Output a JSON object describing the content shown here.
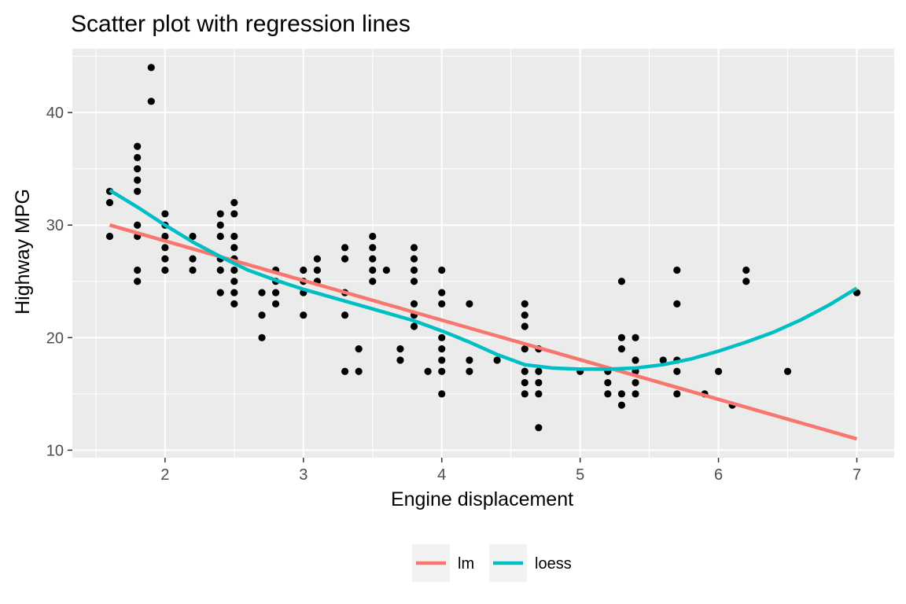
{
  "chart_data": {
    "type": "scatter",
    "title": "Scatter plot with regression lines",
    "xlabel": "Engine displacement",
    "ylabel": "Highway MPG",
    "xlim": [
      1.33,
      7.27
    ],
    "ylim": [
      9.33,
      45.67
    ],
    "x_ticks": [
      2,
      3,
      4,
      5,
      6,
      7
    ],
    "y_ticks": [
      10,
      20,
      30,
      40
    ],
    "grid": true,
    "legend_position": "bottom",
    "colors": {
      "panel_bg": "#ebebeb",
      "grid": "#ffffff",
      "points": "#000000",
      "lm": "#f8766d",
      "loess": "#00bfc4"
    },
    "points": [
      [
        1.6,
        33
      ],
      [
        1.6,
        32
      ],
      [
        1.6,
        29
      ],
      [
        1.8,
        37
      ],
      [
        1.8,
        36
      ],
      [
        1.8,
        35
      ],
      [
        1.8,
        34
      ],
      [
        1.8,
        33
      ],
      [
        1.8,
        30
      ],
      [
        1.8,
        29
      ],
      [
        1.8,
        26
      ],
      [
        1.8,
        25
      ],
      [
        1.9,
        44
      ],
      [
        1.9,
        41
      ],
      [
        2.0,
        31
      ],
      [
        2.0,
        30
      ],
      [
        2.0,
        29
      ],
      [
        2.0,
        28
      ],
      [
        2.0,
        27
      ],
      [
        2.0,
        26
      ],
      [
        2.2,
        29
      ],
      [
        2.2,
        27
      ],
      [
        2.2,
        26
      ],
      [
        2.4,
        31
      ],
      [
        2.4,
        30
      ],
      [
        2.4,
        29
      ],
      [
        2.4,
        27
      ],
      [
        2.4,
        26
      ],
      [
        2.4,
        24
      ],
      [
        2.5,
        32
      ],
      [
        2.5,
        31
      ],
      [
        2.5,
        29
      ],
      [
        2.5,
        28
      ],
      [
        2.5,
        27
      ],
      [
        2.5,
        26
      ],
      [
        2.5,
        25
      ],
      [
        2.5,
        24
      ],
      [
        2.5,
        23
      ],
      [
        2.7,
        24
      ],
      [
        2.7,
        22
      ],
      [
        2.7,
        20
      ],
      [
        2.8,
        26
      ],
      [
        2.8,
        25
      ],
      [
        2.8,
        24
      ],
      [
        2.8,
        23
      ],
      [
        3.0,
        26
      ],
      [
        3.0,
        25
      ],
      [
        3.0,
        24
      ],
      [
        3.0,
        22
      ],
      [
        3.1,
        27
      ],
      [
        3.1,
        26
      ],
      [
        3.1,
        25
      ],
      [
        3.3,
        28
      ],
      [
        3.3,
        27
      ],
      [
        3.3,
        24
      ],
      [
        3.3,
        22
      ],
      [
        3.3,
        17
      ],
      [
        3.4,
        19
      ],
      [
        3.4,
        17
      ],
      [
        3.5,
        29
      ],
      [
        3.5,
        28
      ],
      [
        3.5,
        27
      ],
      [
        3.5,
        26
      ],
      [
        3.5,
        25
      ],
      [
        3.6,
        26
      ],
      [
        3.7,
        19
      ],
      [
        3.7,
        18
      ],
      [
        3.8,
        28
      ],
      [
        3.8,
        27
      ],
      [
        3.8,
        26
      ],
      [
        3.8,
        25
      ],
      [
        3.8,
        23
      ],
      [
        3.8,
        22
      ],
      [
        3.8,
        21
      ],
      [
        3.9,
        17
      ],
      [
        4.0,
        26
      ],
      [
        4.0,
        24
      ],
      [
        4.0,
        23
      ],
      [
        4.0,
        20
      ],
      [
        4.0,
        19
      ],
      [
        4.0,
        18
      ],
      [
        4.0,
        17
      ],
      [
        4.0,
        15
      ],
      [
        4.2,
        23
      ],
      [
        4.2,
        18
      ],
      [
        4.2,
        17
      ],
      [
        4.4,
        18
      ],
      [
        4.6,
        23
      ],
      [
        4.6,
        22
      ],
      [
        4.6,
        21
      ],
      [
        4.6,
        19
      ],
      [
        4.6,
        17
      ],
      [
        4.6,
        16
      ],
      [
        4.6,
        15
      ],
      [
        4.7,
        19
      ],
      [
        4.7,
        17
      ],
      [
        4.7,
        16
      ],
      [
        4.7,
        15
      ],
      [
        4.7,
        12
      ],
      [
        5.0,
        17
      ],
      [
        5.2,
        17
      ],
      [
        5.2,
        16
      ],
      [
        5.2,
        15
      ],
      [
        5.3,
        25
      ],
      [
        5.3,
        20
      ],
      [
        5.3,
        19
      ],
      [
        5.3,
        15
      ],
      [
        5.3,
        14
      ],
      [
        5.4,
        20
      ],
      [
        5.4,
        18
      ],
      [
        5.4,
        17
      ],
      [
        5.4,
        16
      ],
      [
        5.4,
        15
      ],
      [
        5.6,
        18
      ],
      [
        5.7,
        26
      ],
      [
        5.7,
        23
      ],
      [
        5.7,
        18
      ],
      [
        5.7,
        17
      ],
      [
        5.7,
        15
      ],
      [
        5.9,
        15
      ],
      [
        6.0,
        17
      ],
      [
        6.1,
        14
      ],
      [
        6.2,
        26
      ],
      [
        6.2,
        25
      ],
      [
        6.5,
        17
      ],
      [
        7.0,
        24
      ]
    ],
    "series": [
      {
        "name": "lm",
        "x": [
          1.6,
          7.0
        ],
        "y": [
          30.0,
          11.0
        ]
      },
      {
        "name": "loess",
        "x": [
          1.6,
          1.8,
          2.0,
          2.2,
          2.4,
          2.6,
          2.8,
          3.0,
          3.2,
          3.4,
          3.6,
          3.8,
          4.0,
          4.2,
          4.4,
          4.6,
          4.8,
          5.0,
          5.2,
          5.4,
          5.6,
          5.8,
          6.0,
          6.2,
          6.4,
          6.6,
          6.8,
          7.0
        ],
        "y": [
          33.1,
          31.6,
          30.0,
          28.5,
          27.2,
          26.0,
          25.1,
          24.3,
          23.6,
          22.9,
          22.2,
          21.5,
          20.6,
          19.6,
          18.5,
          17.6,
          17.3,
          17.2,
          17.2,
          17.3,
          17.6,
          18.1,
          18.8,
          19.6,
          20.5,
          21.6,
          22.9,
          24.4
        ]
      }
    ]
  }
}
